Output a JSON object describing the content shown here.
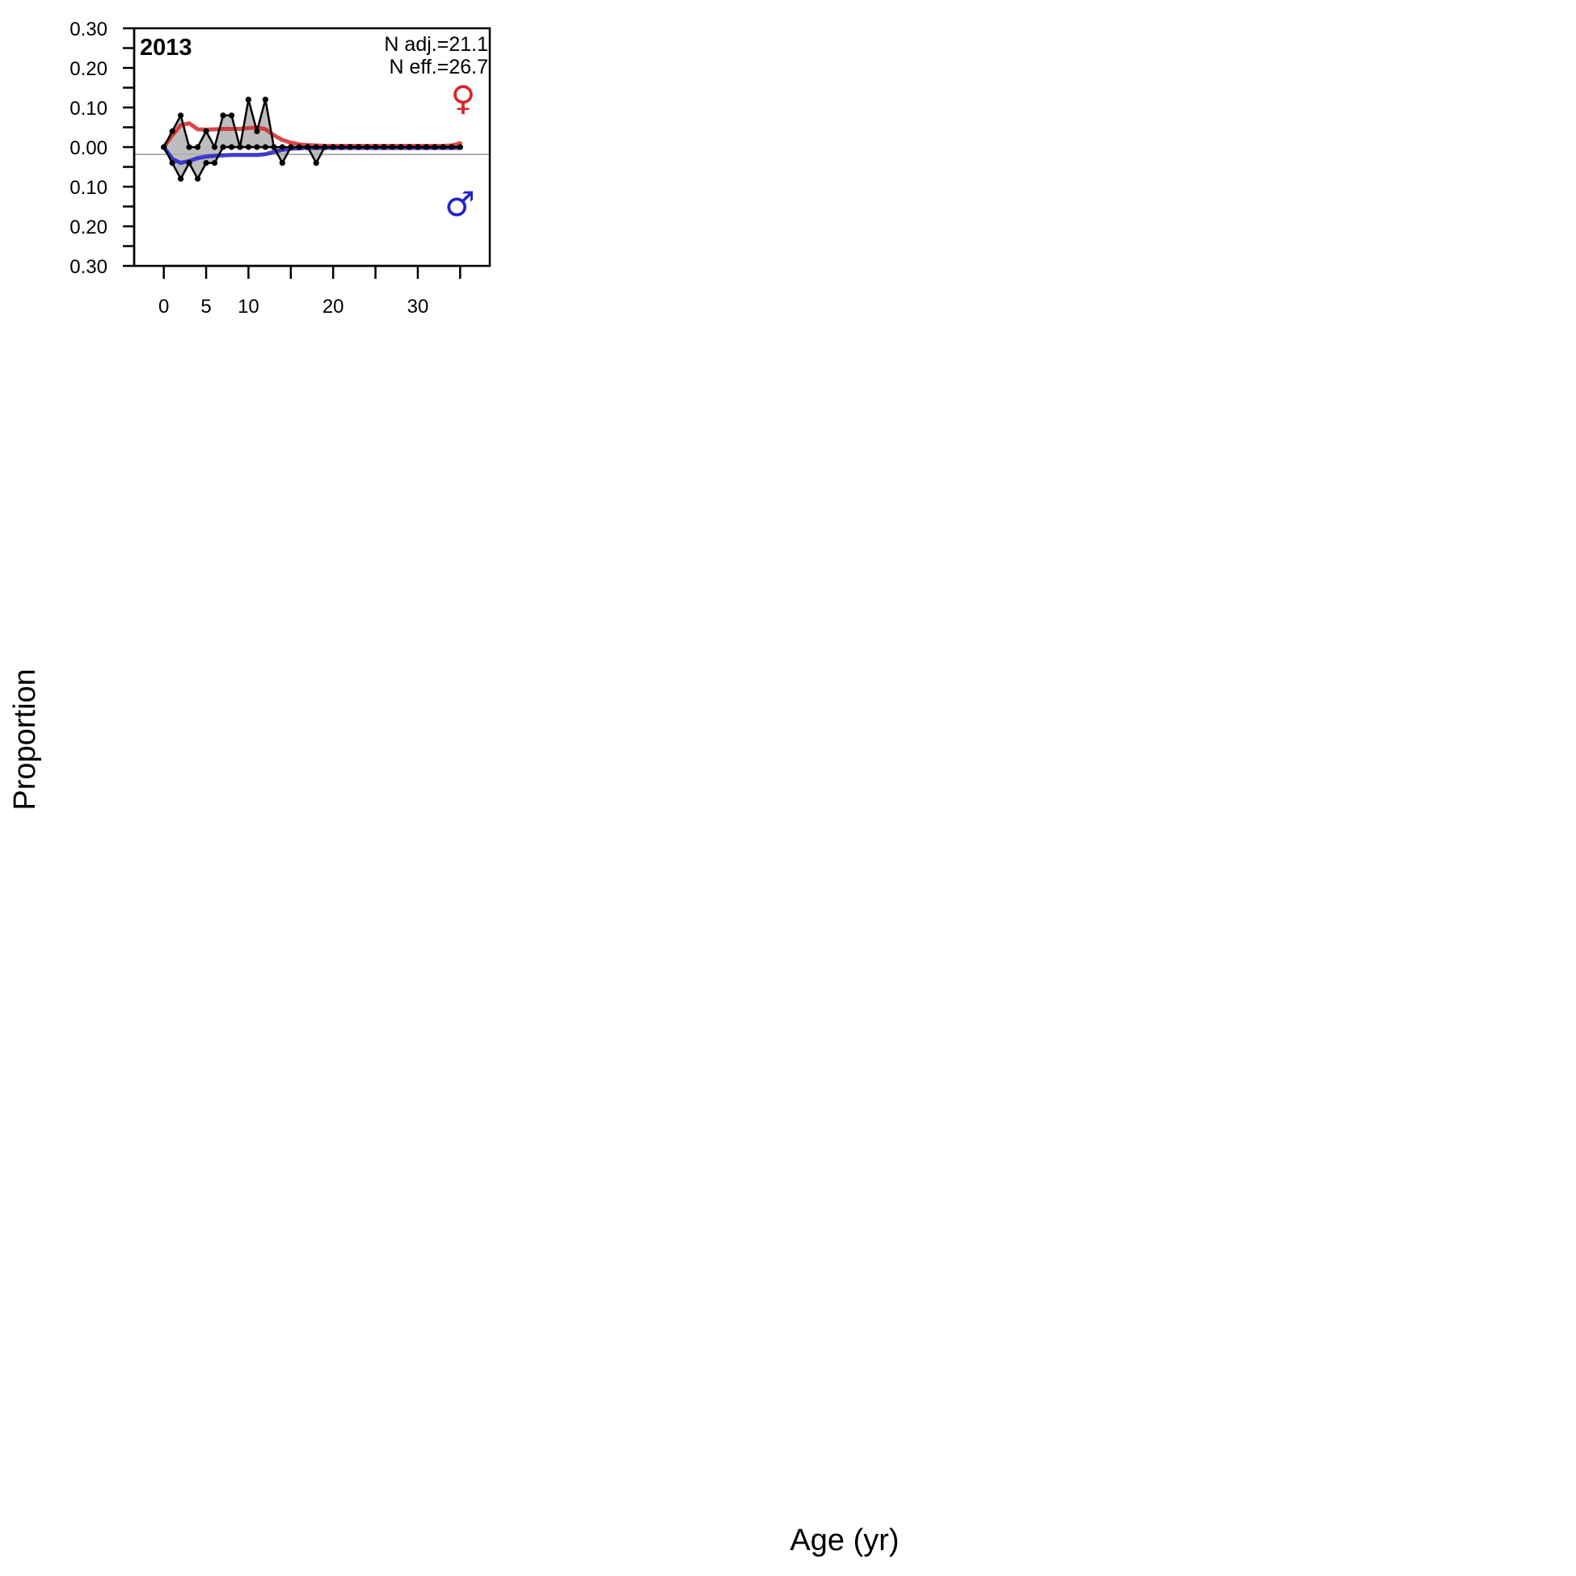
{
  "chart_data": {
    "type": "line",
    "title": "2013",
    "xlabel": "Age (yr)",
    "ylabel": "Proportion",
    "annotations": {
      "n_adj": "N adj.=21.1",
      "n_eff": "N eff.=26.7"
    },
    "xlim": [
      -3.5,
      38.5
    ],
    "ylim": [
      -0.3,
      0.3
    ],
    "xticks": [
      0,
      5,
      10,
      15,
      20,
      25,
      30,
      35
    ],
    "xtick_labels": [
      "0",
      "5",
      "10",
      "",
      "20",
      "",
      "30",
      ""
    ],
    "yticks": [
      0.3,
      0.25,
      0.2,
      0.15,
      0.1,
      0.05,
      0.0,
      -0.05,
      -0.1,
      -0.15,
      -0.2,
      -0.25,
      -0.3
    ],
    "ytick_labels": [
      "0.30",
      "",
      "0.20",
      "",
      "0.10",
      "",
      "0.00",
      "",
      "0.10",
      "",
      "0.20",
      "",
      "0.30"
    ],
    "legend": {
      "female_symbol": "♀",
      "male_symbol": "♂",
      "female_color": "#d62728",
      "male_color": "#2222cc"
    },
    "series": [
      {
        "name": "Female observed",
        "side": "female",
        "kind": "observed",
        "color": "#000000",
        "x": [
          0,
          1,
          2,
          3,
          4,
          5,
          6,
          7,
          8,
          9,
          10,
          11,
          12,
          13,
          14,
          15,
          16,
          17,
          18,
          19,
          20,
          21,
          22,
          23,
          24,
          25,
          26,
          27,
          28,
          29,
          30,
          31,
          32,
          33,
          34,
          35
        ],
        "values": [
          0,
          0.04,
          0.08,
          0,
          0,
          0.04,
          0,
          0.08,
          0.08,
          0,
          0.12,
          0.04,
          0.12,
          0,
          0,
          0,
          0,
          0,
          0,
          0,
          0,
          0,
          0,
          0,
          0,
          0,
          0,
          0,
          0,
          0,
          0,
          0,
          0,
          0,
          0,
          0
        ]
      },
      {
        "name": "Male observed",
        "side": "male",
        "kind": "observed",
        "color": "#000000",
        "x": [
          0,
          1,
          2,
          3,
          4,
          5,
          6,
          7,
          8,
          9,
          10,
          11,
          12,
          13,
          14,
          15,
          16,
          17,
          18,
          19,
          20,
          21,
          22,
          23,
          24,
          25,
          26,
          27,
          28,
          29,
          30,
          31,
          32,
          33,
          34,
          35
        ],
        "values": [
          0,
          0.04,
          0.08,
          0.04,
          0.08,
          0.04,
          0.04,
          0,
          0,
          0,
          0,
          0,
          0,
          0,
          0.04,
          0,
          0,
          0,
          0.04,
          0,
          0,
          0,
          0,
          0,
          0,
          0,
          0,
          0,
          0,
          0,
          0,
          0,
          0,
          0,
          0,
          0
        ]
      },
      {
        "name": "Female expected",
        "side": "female",
        "kind": "expected",
        "color": "#d62728",
        "x": [
          0,
          1,
          2,
          3,
          4,
          5,
          6,
          7,
          8,
          9,
          10,
          11,
          12,
          13,
          14,
          15,
          16,
          17,
          18,
          19,
          20,
          21,
          22,
          23,
          24,
          25,
          26,
          27,
          28,
          29,
          30,
          31,
          32,
          33,
          34,
          35
        ],
        "values": [
          0,
          0.03,
          0.055,
          0.06,
          0.045,
          0.044,
          0.045,
          0.046,
          0.046,
          0.046,
          0.048,
          0.05,
          0.045,
          0.03,
          0.018,
          0.011,
          0.007,
          0.005,
          0.004,
          0.003,
          0.003,
          0.003,
          0.003,
          0.003,
          0.003,
          0.003,
          0.003,
          0.003,
          0.003,
          0.003,
          0.003,
          0.003,
          0.003,
          0.003,
          0.004,
          0.01
        ]
      },
      {
        "name": "Male expected",
        "side": "male",
        "kind": "expected",
        "color": "#2222cc",
        "x": [
          0,
          1,
          2,
          3,
          4,
          5,
          6,
          7,
          8,
          9,
          10,
          11,
          12,
          13,
          14,
          15,
          16,
          17,
          18,
          19,
          20,
          21,
          22,
          23,
          24,
          25,
          26,
          27,
          28,
          29,
          30,
          31,
          32,
          33,
          34,
          35
        ],
        "values": [
          0,
          0.03,
          0.04,
          0.035,
          0.028,
          0.024,
          0.022,
          0.021,
          0.02,
          0.02,
          0.02,
          0.02,
          0.018,
          0.012,
          0.007,
          0.004,
          0.003,
          0.002,
          0.002,
          0.002,
          0.002,
          0.002,
          0.002,
          0.002,
          0.002,
          0.002,
          0.002,
          0.002,
          0.002,
          0.002,
          0.002,
          0.002,
          0.002,
          0.002,
          0.002,
          0.002
        ]
      }
    ]
  }
}
